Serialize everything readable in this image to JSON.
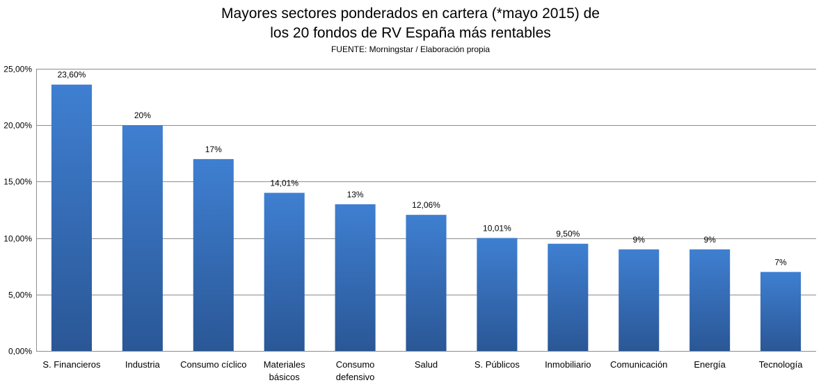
{
  "chart_data": {
    "type": "bar",
    "title_lines": [
      "Mayores sectores ponderados en cartera (*mayo 2015) de",
      "los 20 fondos de RV España más rentables"
    ],
    "subtitle": "FUENTE: Morningstar / Elaboración propia",
    "categories": [
      [
        "S. Financieros"
      ],
      [
        "Industria"
      ],
      [
        "Consumo cíclico"
      ],
      [
        "Materiales",
        "básicos"
      ],
      [
        "Consumo",
        "defensivo"
      ],
      [
        "Salud"
      ],
      [
        "S. Públicos"
      ],
      [
        "Inmobiliario"
      ],
      [
        "Comunicación"
      ],
      [
        "Energía"
      ],
      [
        "Tecnología"
      ]
    ],
    "values": [
      23.6,
      20,
      17,
      14.01,
      13,
      12.06,
      10.01,
      9.5,
      9,
      9,
      7
    ],
    "data_labels": [
      "23,60%",
      "20%",
      "17%",
      "14,01%",
      "13%",
      "12,06%",
      "10,01%",
      "9,50%",
      "9%",
      "9%",
      "7%"
    ],
    "ylim": [
      0,
      25
    ],
    "yticks": [
      0,
      5,
      10,
      15,
      20,
      25
    ],
    "ytick_labels": [
      "0,00%",
      "5,00%",
      "10,00%",
      "15,00%",
      "20,00%",
      "25,00%"
    ],
    "grid": true,
    "legend": "none",
    "xlabel": "",
    "ylabel": "",
    "colors": {
      "bar_top": "#3f7fd1",
      "bar_bottom": "#2a5796",
      "grid": "#8c8c8c"
    }
  }
}
